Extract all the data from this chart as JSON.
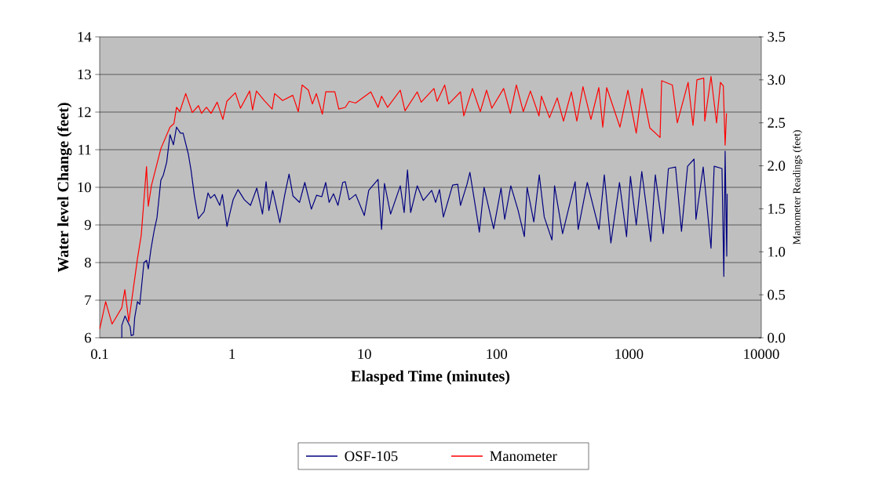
{
  "chart_data": {
    "type": "line",
    "xlabel": "Elasped Time (minutes)",
    "ylabel": "Water level Change (feet)",
    "y2label": "Manometer Readings (feet)",
    "log": "x",
    "grid": "y",
    "legend": "bottom",
    "marker": "none",
    "line_style": "solid",
    "xlim": [
      0.1,
      10000
    ],
    "xticks": [
      0.1,
      1,
      10,
      100,
      1000,
      10000
    ],
    "ylim": [
      6,
      14
    ],
    "yticks": [
      6,
      7,
      8,
      9,
      10,
      11,
      12,
      13,
      14
    ],
    "y2lim": [
      0,
      3.5
    ],
    "y2ticks": [
      {
        "value": 0,
        "label": "0.0"
      },
      0.5,
      {
        "value": 1,
        "label": "1.0"
      },
      1.5,
      {
        "value": 2,
        "label": "2.0"
      },
      2.5,
      {
        "value": 3,
        "label": "3.0"
      },
      3.5
    ],
    "series": [
      {
        "name": "OSF-105",
        "color": "#000080",
        "x": [
          0.147,
          0.147,
          0.1555,
          0.17,
          0.173,
          0.18,
          0.184,
          0.193,
          0.201,
          0.216,
          0.226,
          0.233,
          0.244,
          0.259,
          0.271,
          0.29,
          0.303,
          0.321,
          0.34,
          0.361,
          0.381,
          0.408,
          0.427,
          0.468,
          0.49,
          0.52,
          0.557,
          0.615,
          0.659,
          0.689,
          0.738,
          0.808,
          0.846,
          0.917,
          0.961,
          1.02,
          1.11,
          1.24,
          1.38,
          1.54,
          1.7,
          1.81,
          1.9,
          2.03,
          2.3,
          2.5,
          2.7,
          2.89,
          3.24,
          3.55,
          3.98,
          4.36,
          4.77,
          5.11,
          5.42,
          5.85,
          6.32,
          6.87,
          7.18,
          7.69,
          8.61,
          10.0,
          10.8,
          12.7,
          13.5,
          14.2,
          15.8,
          18.7,
          20.0,
          21.2,
          22.4,
          25.1,
          27.9,
          32.3,
          34.6,
          37.0,
          39.6,
          46.5,
          50.8,
          53.3,
          59.7,
          62.8,
          71.6,
          74.0,
          80.3,
          94.9,
          108,
          115,
          128,
          145,
          162,
          170,
          191,
          210,
          229,
          262,
          274,
          315,
          392,
          413,
          484,
          594,
          651,
          730,
          848,
          959,
          1026,
          1135,
          1250,
          1462,
          1582,
          1815,
          1987,
          2249,
          2495,
          2773,
          3105,
          3208,
          3639,
          4170,
          4406,
          5047,
          5212,
          5330,
          5483,
          5535
        ],
        "values": [
          6.0,
          6.33,
          6.58,
          6.29,
          6.06,
          6.08,
          6.54,
          6.96,
          6.89,
          8.0,
          8.06,
          7.83,
          8.35,
          8.88,
          9.19,
          10.19,
          10.33,
          10.67,
          11.4,
          11.13,
          11.6,
          11.44,
          11.44,
          10.88,
          10.46,
          9.77,
          9.17,
          9.35,
          9.85,
          9.71,
          9.81,
          9.52,
          9.81,
          8.96,
          9.29,
          9.67,
          9.94,
          9.67,
          9.52,
          9.98,
          9.29,
          10.15,
          9.38,
          9.92,
          9.06,
          9.79,
          10.35,
          9.77,
          9.6,
          10.13,
          9.42,
          9.79,
          9.75,
          10.13,
          9.6,
          9.83,
          9.52,
          10.13,
          10.15,
          9.67,
          9.81,
          9.25,
          9.92,
          10.21,
          8.88,
          10.1,
          9.29,
          10.04,
          9.33,
          10.46,
          9.33,
          10.04,
          9.65,
          9.92,
          9.6,
          9.94,
          9.21,
          10.06,
          10.08,
          9.52,
          10.08,
          10.4,
          9.15,
          8.81,
          10.0,
          8.9,
          9.98,
          9.15,
          10.04,
          9.4,
          8.69,
          10.0,
          9.08,
          10.33,
          9.21,
          8.6,
          10.04,
          8.77,
          10.15,
          8.88,
          10.13,
          8.88,
          10.33,
          8.52,
          10.13,
          8.69,
          10.29,
          9.0,
          10.42,
          8.56,
          10.33,
          8.77,
          10.5,
          10.54,
          8.83,
          10.56,
          10.75,
          9.15,
          10.54,
          8.38,
          10.56,
          10.5,
          7.63,
          10.96,
          8.17,
          9.83
        ]
      },
      {
        "name": "Manometer",
        "color": "#ff0000",
        "axis": "y2",
        "x": [
          0.1,
          0.111,
          0.124,
          0.147,
          0.155,
          0.166,
          0.193,
          0.206,
          0.226,
          0.233,
          0.246,
          0.29,
          0.34,
          0.364,
          0.381,
          0.403,
          0.447,
          0.501,
          0.558,
          0.588,
          0.641,
          0.695,
          0.773,
          0.853,
          0.914,
          1.06,
          1.16,
          1.36,
          1.43,
          1.53,
          1.75,
          2.01,
          2.1,
          2.41,
          2.88,
          3.17,
          3.39,
          3.78,
          4.05,
          4.34,
          4.82,
          5.11,
          5.99,
          6.41,
          7.18,
          7.69,
          8.59,
          11.2,
          12.7,
          13.5,
          15.0,
          18.7,
          20.3,
          25.1,
          26.9,
          33.6,
          35.5,
          40.5,
          43.4,
          53.3,
          56.5,
          65.6,
          75.3,
          83.9,
          92.0,
          113,
          127,
          141,
          159,
          180,
          209,
          218,
          251,
          287,
          320,
          367,
          404,
          449,
          516,
          592,
          634,
          679,
          855,
          982,
          1135,
          1254,
          1439,
          1718,
          1766,
          2128,
          2319,
          2799,
          3048,
          3264,
          3675,
          3741,
          4170,
          4592,
          4914,
          5164,
          5330,
          5460
        ],
        "values": [
          0.1,
          0.42,
          0.16,
          0.35,
          0.56,
          0.19,
          0.92,
          1.19,
          1.99,
          1.53,
          1.77,
          2.2,
          2.45,
          2.49,
          2.68,
          2.63,
          2.84,
          2.62,
          2.7,
          2.61,
          2.68,
          2.61,
          2.74,
          2.54,
          2.75,
          2.85,
          2.67,
          2.87,
          2.65,
          2.87,
          2.76,
          2.66,
          2.84,
          2.76,
          2.82,
          2.63,
          2.94,
          2.88,
          2.72,
          2.84,
          2.6,
          2.86,
          2.86,
          2.66,
          2.68,
          2.75,
          2.73,
          2.86,
          2.68,
          2.81,
          2.68,
          2.88,
          2.64,
          2.86,
          2.74,
          2.9,
          2.75,
          2.94,
          2.72,
          2.86,
          2.58,
          2.9,
          2.63,
          2.88,
          2.67,
          2.9,
          2.61,
          2.94,
          2.63,
          2.87,
          2.58,
          2.81,
          2.56,
          2.79,
          2.52,
          2.86,
          2.52,
          2.92,
          2.54,
          2.91,
          2.45,
          2.91,
          2.45,
          2.88,
          2.38,
          2.9,
          2.44,
          2.33,
          2.99,
          2.94,
          2.5,
          2.97,
          2.47,
          3.0,
          3.02,
          2.52,
          3.04,
          2.5,
          2.97,
          2.93,
          2.24,
          2.61
        ]
      }
    ]
  }
}
